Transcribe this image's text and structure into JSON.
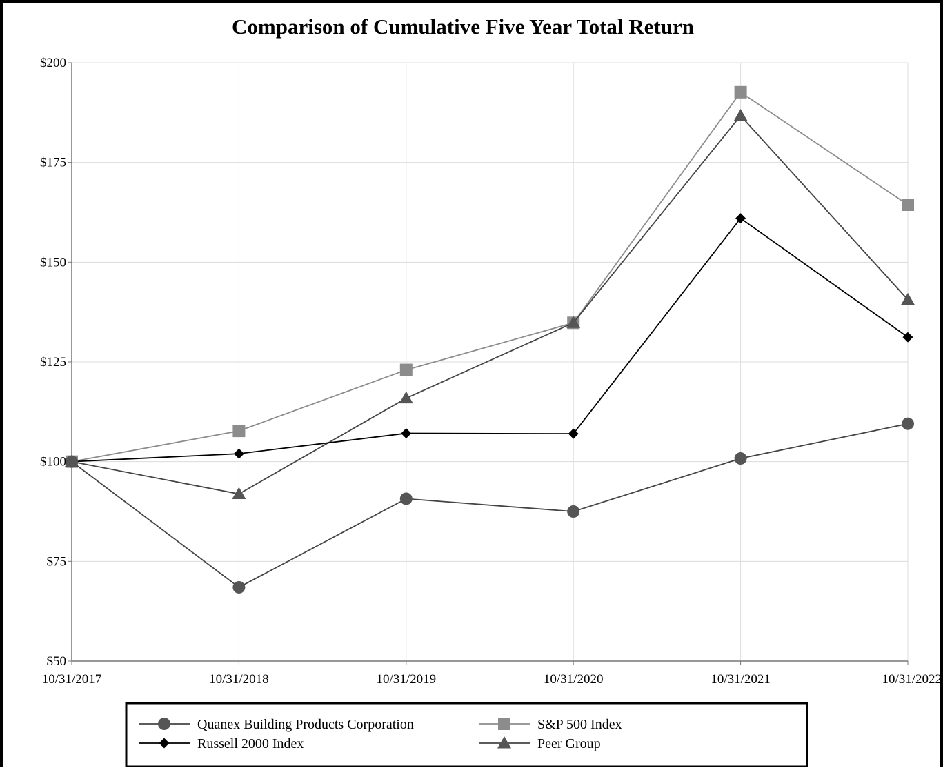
{
  "chart_data": {
    "type": "line",
    "title": "Comparison of Cumulative Five Year Total Return",
    "xlabel": "",
    "ylabel": "",
    "x": [
      "10/31/2017",
      "10/31/2018",
      "10/31/2019",
      "10/31/2020",
      "10/31/2021",
      "10/31/2022"
    ],
    "ylim": [
      50,
      200
    ],
    "yticks": [
      200,
      175,
      150,
      125,
      100,
      75,
      50
    ],
    "ytick_labels": [
      "$200",
      "$175",
      "$150",
      "$125",
      "$100",
      "$75",
      "$50"
    ],
    "grid": true,
    "legend_position": "bottom",
    "series": [
      {
        "name": "Quanex Building Products Corporation",
        "marker": "circle",
        "color": "#555555",
        "line_color": "#444444",
        "values": [
          100,
          68.5,
          90.7,
          87.5,
          100.8,
          109.5
        ]
      },
      {
        "name": "S&P 500 Index",
        "marker": "square",
        "color": "#8c8c8c",
        "line_color": "#8c8c8c",
        "values": [
          100,
          107.7,
          123,
          134.8,
          192.6,
          164.4
        ]
      },
      {
        "name": "Russell 2000 Index",
        "marker": "diamond",
        "color": "#000000",
        "line_color": "#000000",
        "values": [
          100,
          102,
          107.1,
          107,
          161,
          131.2
        ]
      },
      {
        "name": "Peer Group",
        "marker": "triangle",
        "color": "#555555",
        "line_color": "#444444",
        "values": [
          100,
          91.9,
          115.9,
          134.8,
          186.7,
          140.6
        ]
      }
    ],
    "legend_order": [
      0,
      1,
      2,
      3
    ]
  }
}
